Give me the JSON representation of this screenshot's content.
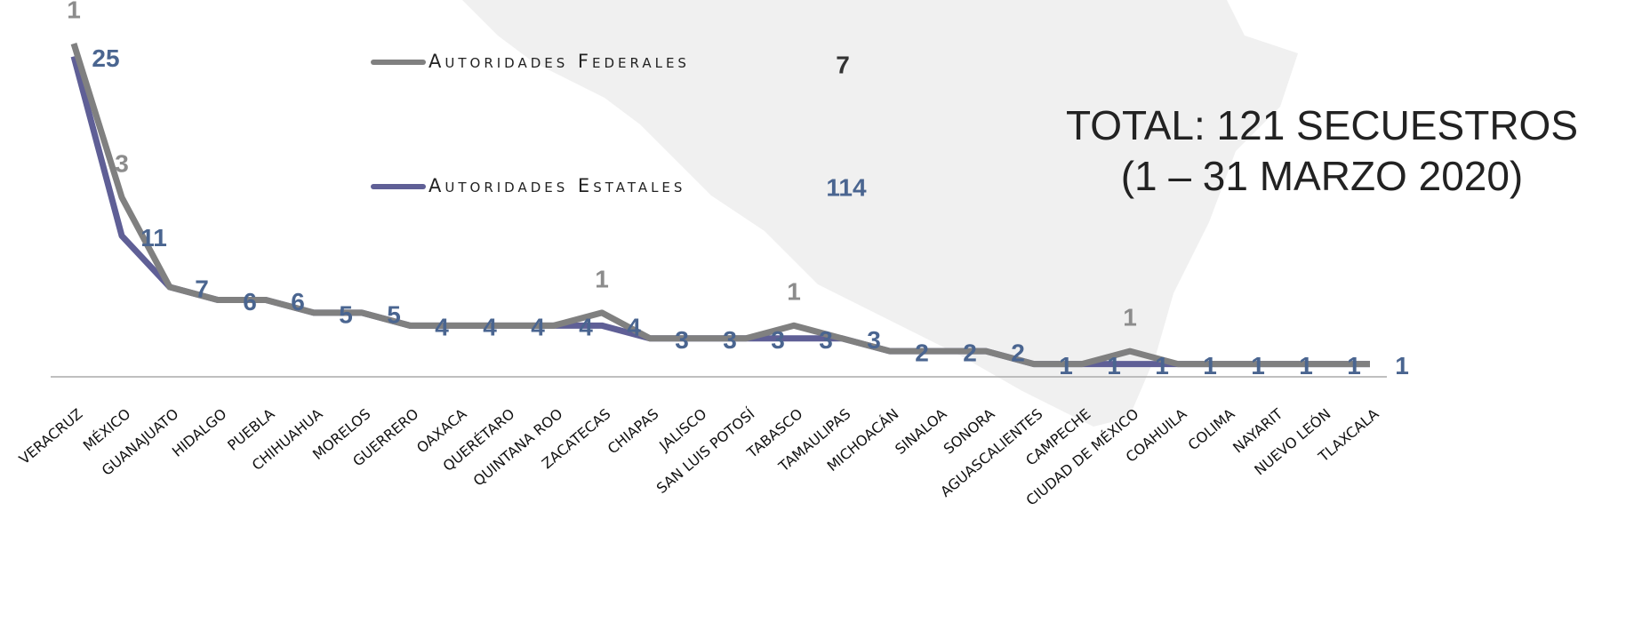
{
  "chart_data": {
    "type": "line",
    "stacked": true,
    "annotations": [
      "TOTAL: 121 SECUESTROS",
      "(1 – 31 MARZO 2020)"
    ],
    "categories": [
      "VERACRUZ",
      "MÉXICO",
      "GUANAJUATO",
      "HIDALGO",
      "PUEBLA",
      "CHIHUAHUA",
      "MORELOS",
      "GUERRERO",
      "OAXACA",
      "QUERÉTARO",
      "QUINTANA ROO",
      "ZACATECAS",
      "CHIAPAS",
      "JALISCO",
      "SAN LUIS POTOSÍ",
      "TABASCO",
      "TAMAULIPAS",
      "MICHOACÁN",
      "SINALOA",
      "SONORA",
      "AGUASCALIENTES",
      "CAMPECHE",
      "CIUDAD DE MÉXICO",
      "COAHUILA",
      "COLIMA",
      "NAYARIT",
      "NUEVO LEÓN",
      "TLAXCALA"
    ],
    "series": [
      {
        "name": "Autoridades Federales",
        "color": "#808080",
        "label_color": "#8c8c8c",
        "total": 7,
        "values": [
          1,
          3,
          0,
          0,
          0,
          0,
          0,
          0,
          0,
          0,
          0,
          1,
          0,
          0,
          0,
          1,
          0,
          0,
          0,
          0,
          0,
          0,
          1,
          0,
          0,
          0,
          0,
          0
        ],
        "value_labels": [
          "1",
          "3",
          null,
          null,
          null,
          null,
          null,
          null,
          null,
          null,
          null,
          "1",
          null,
          null,
          null,
          "1",
          null,
          null,
          null,
          null,
          null,
          null,
          "1",
          null,
          null,
          null,
          null,
          null
        ]
      },
      {
        "name": "Autoridades Estatales",
        "color": "#5f5f96",
        "label_color": "#4a6590",
        "total": 114,
        "values": [
          25,
          11,
          7,
          6,
          6,
          5,
          5,
          4,
          4,
          4,
          4,
          4,
          3,
          3,
          3,
          3,
          3,
          2,
          2,
          2,
          1,
          1,
          1,
          1,
          1,
          1,
          1,
          1
        ]
      }
    ],
    "ylim": [
      0,
      29.4
    ]
  }
}
